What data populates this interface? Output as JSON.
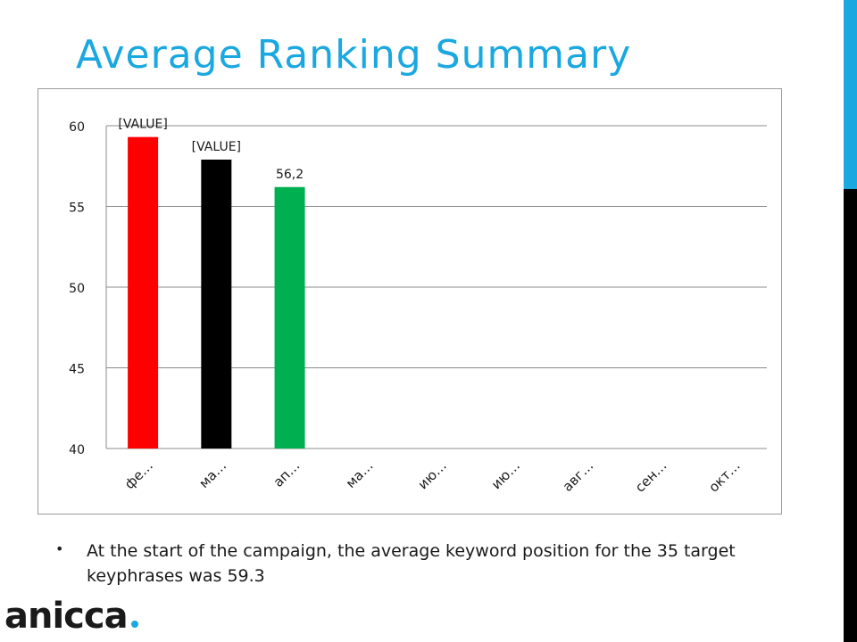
{
  "slide": {
    "title": "Average Ranking Summary",
    "bullet": "At the start of the campaign, the average keyword position for the 35 target keyphrases was 59.3",
    "logo_text": "anicca",
    "accent_color": "#1aa8e0"
  },
  "chart_data": {
    "type": "bar",
    "categories": [
      "фе…",
      "ма…",
      "ап…",
      "ма…",
      "ию…",
      "ию…",
      "авг…",
      "сен…",
      "окт…"
    ],
    "values": [
      59.3,
      57.9,
      56.2,
      null,
      null,
      null,
      null,
      null,
      null
    ],
    "data_labels": [
      "[VALUE]",
      "[VALUE]",
      "56,2",
      "",
      "",
      "",
      "",
      "",
      ""
    ],
    "bar_colors": [
      "#ff0000",
      "#000000",
      "#00b050"
    ],
    "ylim": [
      40,
      60
    ],
    "yticks": [
      "40",
      "45",
      "50",
      "55",
      "60"
    ],
    "grid": true,
    "legend": "none",
    "title": "",
    "xlabel": "",
    "ylabel": ""
  }
}
